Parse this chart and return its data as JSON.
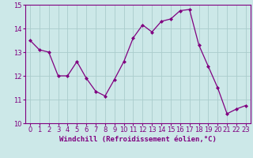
{
  "x": [
    0,
    1,
    2,
    3,
    4,
    5,
    6,
    7,
    8,
    9,
    10,
    11,
    12,
    13,
    14,
    15,
    16,
    17,
    18,
    19,
    20,
    21,
    22,
    23
  ],
  "y": [
    13.5,
    13.1,
    13.0,
    12.0,
    12.0,
    12.6,
    11.9,
    11.35,
    11.15,
    11.85,
    12.6,
    13.6,
    14.15,
    13.85,
    14.3,
    14.4,
    14.75,
    14.8,
    13.3,
    12.4,
    11.5,
    10.4,
    10.6,
    10.75
  ],
  "line_color": "#800080",
  "marker_color": "#800080",
  "bg_color": "#cce8e8",
  "grid_color": "#aacccc",
  "xlabel": "Windchill (Refroidissement éolien,°C)",
  "ylim": [
    10,
    15
  ],
  "xlim_min": -0.5,
  "xlim_max": 23.5,
  "yticks": [
    10,
    11,
    12,
    13,
    14,
    15
  ],
  "xtick_labels": [
    "0",
    "1",
    "2",
    "3",
    "4",
    "5",
    "6",
    "7",
    "8",
    "9",
    "10",
    "11",
    "12",
    "13",
    "14",
    "15",
    "16",
    "17",
    "18",
    "19",
    "20",
    "21",
    "22",
    "23"
  ],
  "xlabel_color": "#800080",
  "tick_color": "#800080",
  "label_fontsize": 6.5,
  "tick_fontsize": 6.0,
  "linewidth": 0.9,
  "markersize": 2.0
}
